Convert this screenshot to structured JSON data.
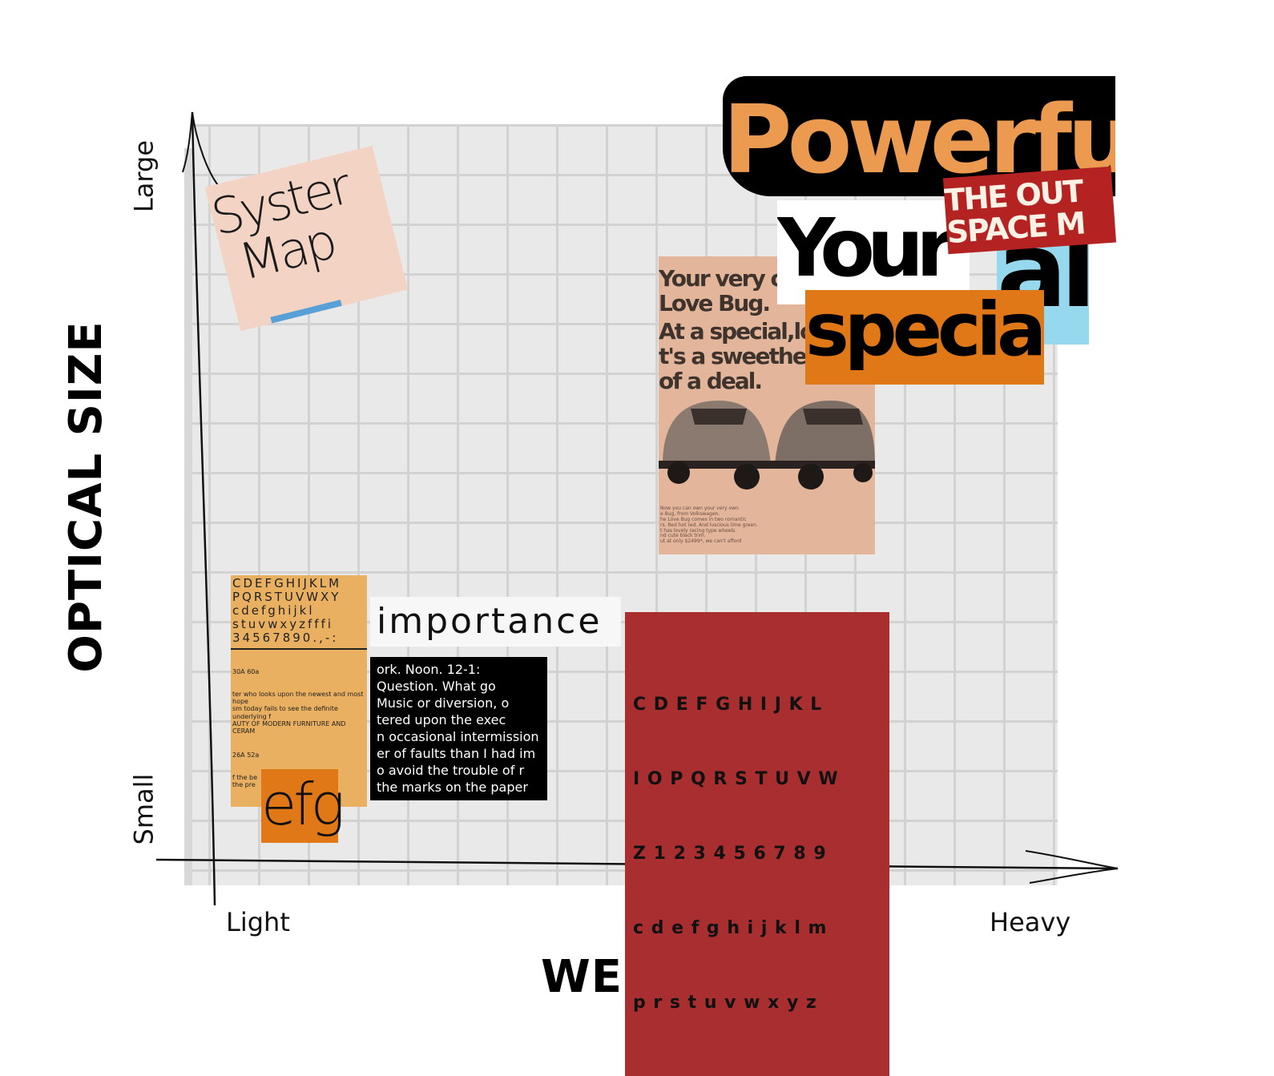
{
  "axes": {
    "x_title": "WEIGHT",
    "y_title": "OPTICAL SIZE",
    "x_low": "Light",
    "x_high": "Heavy",
    "y_low": "Small",
    "y_high": "Large"
  },
  "clippings": {
    "system_map": {
      "line1": "Syster",
      "line2": "Map",
      "color": "#f3d4c4"
    },
    "specimen": {
      "rows": [
        "CDEFGHIJKLM",
        "PQRSTUVWXY",
        "cdefghijkl",
        "stuvwxyzfffi",
        "34567890.,-:"
      ],
      "size1": "30A 60a",
      "body1": "ter who looks upon the newest and most hope\nsm today fails to see the definite underlying f\nAUTY OF MODERN FURNITURE AND CERAM",
      "size2": "26A 52a",
      "body2": "f the be          d in Engl\nthe pre",
      "color": "#e8b060"
    },
    "importance": {
      "text": "importance"
    },
    "efg": {
      "text": "efg",
      "color": "#e07818"
    },
    "paragraph": {
      "lines": [
        "ork. Noon. 12-1:",
        "Question. What go",
        "Music or diversion, o",
        "tered upon the exec",
        "n occasional intermission",
        "er of faults than I had im",
        "o avoid the trouble of r",
        "the marks on the paper"
      ]
    },
    "alphabet": {
      "rows": [
        "C D E F G H I J K L",
        "I O P Q R S T U V W",
        "Z 1 2 3 4 5 6 7 8 9",
        "c d e f g h i j k l m",
        "p r s t u v w x y z"
      ],
      "color": "#a82e30"
    },
    "love_bug": {
      "headline": [
        "Your very ow",
        "Love Bug.",
        "At a special,lo",
        "t's a sweethe",
        "of a deal."
      ],
      "body": "Now you can own your very own\ne Bug, from Volkswagen.\nhe Love Bug comes in two romantic\nrs. Red hot red. And luscious lime green.\nt has lovely racing type wheels.\nnd cute black trim.\nut at only $2499*, we can't afford",
      "color": "#e3b59a"
    },
    "powerful": {
      "text": "Powerfu",
      "color": "#ec9a50"
    },
    "outer_space": {
      "line1": "THE OUT",
      "line2": "SPACE M",
      "color": "#b42222"
    },
    "your": {
      "text": "Your"
    },
    "special": {
      "text": "specia",
      "color": "#e07818"
    },
    "al": {
      "text": "al",
      "color": "#96d8ee"
    }
  }
}
